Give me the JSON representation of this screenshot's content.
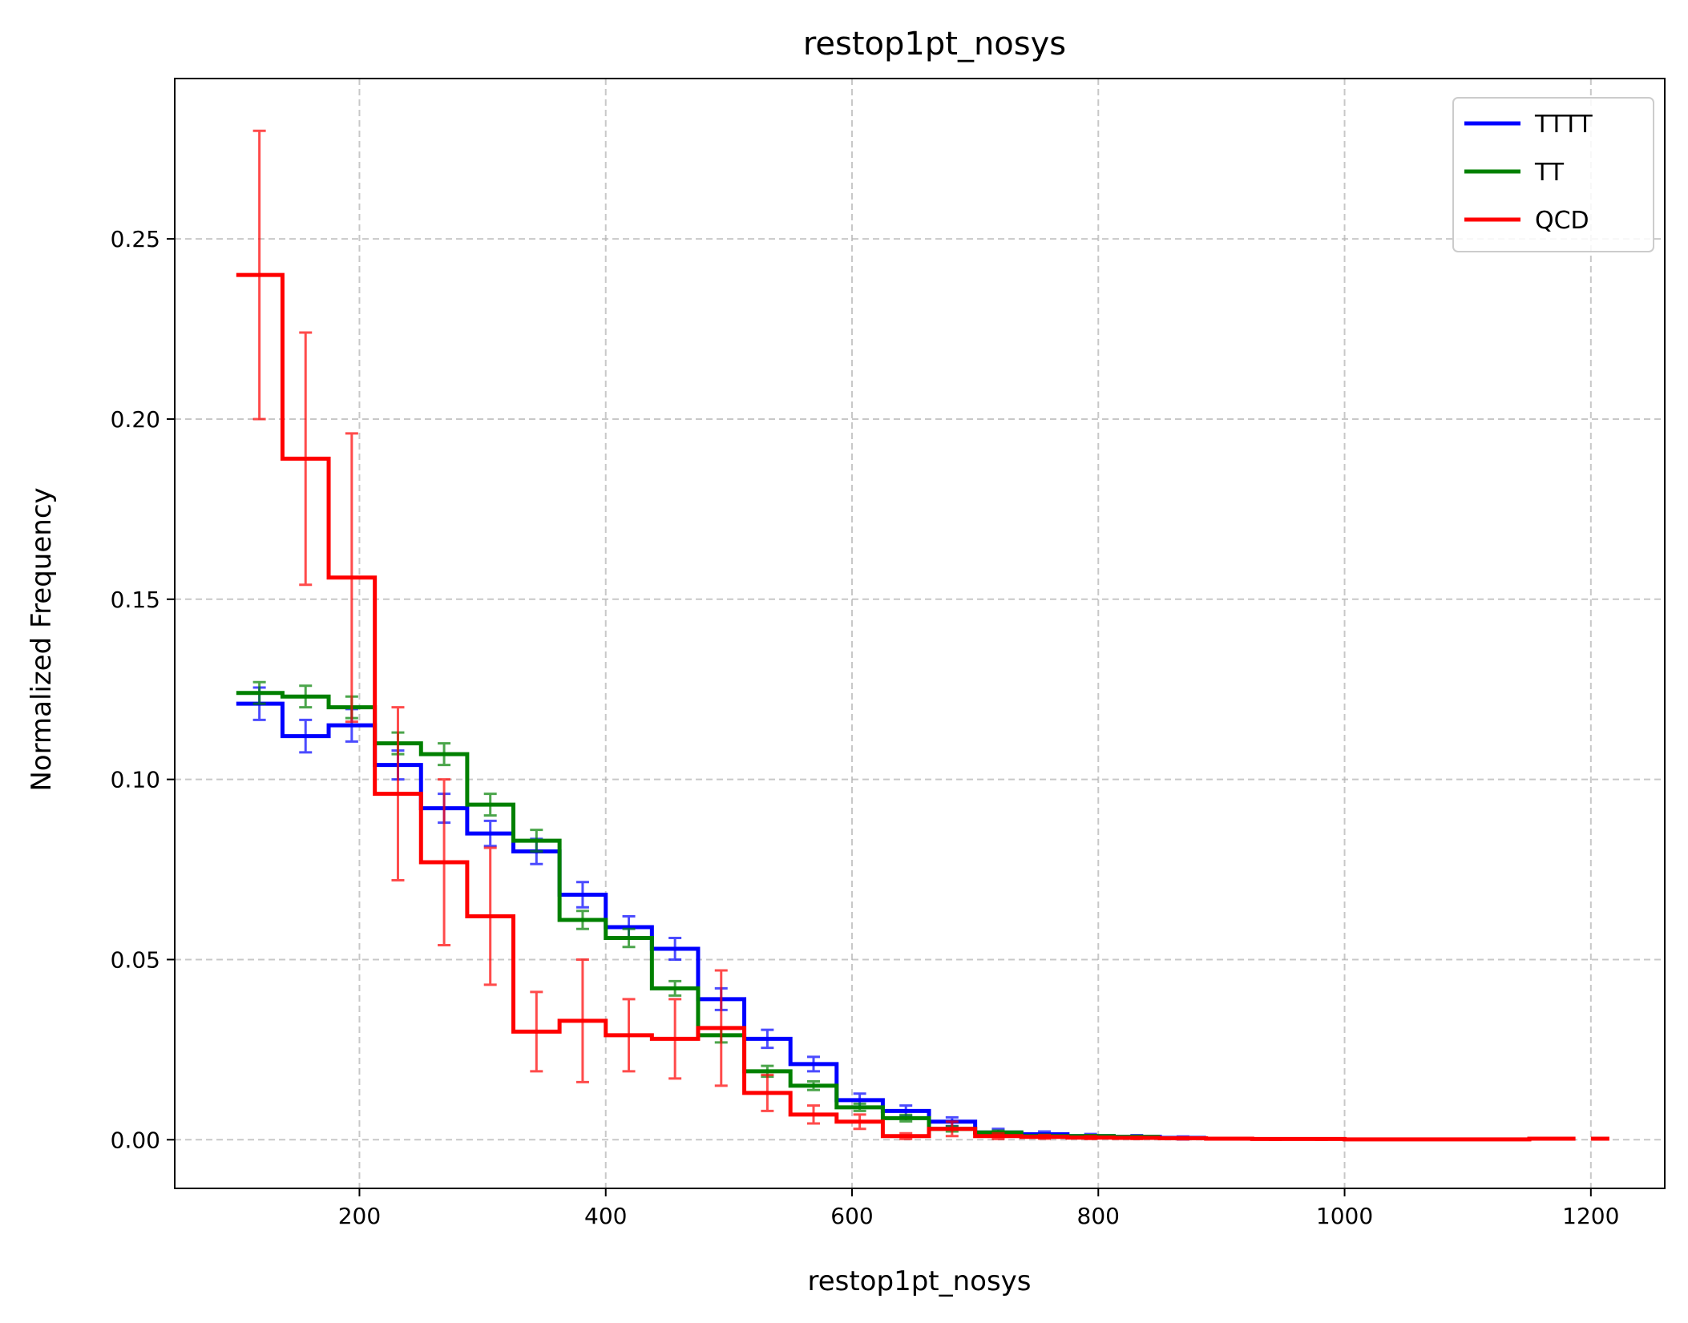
{
  "chart_data": {
    "type": "line",
    "title": "restop1pt_nosys",
    "xlabel": "restop1pt_nosys",
    "ylabel": "Normalized Frequency",
    "xlim": [
      50,
      1260
    ],
    "ylim": [
      -0.0135,
      0.2945
    ],
    "xticks": [
      200,
      400,
      600,
      800,
      1000,
      1200
    ],
    "yticks": [
      0.0,
      0.05,
      0.1,
      0.15,
      0.2,
      0.25
    ],
    "xtick_labels": [
      "200",
      "400",
      "600",
      "800",
      "1000",
      "1200"
    ],
    "ytick_labels": [
      "0.00",
      "0.05",
      "0.10",
      "0.15",
      "0.20",
      "0.25"
    ],
    "grid": true,
    "legend_position": "top-right",
    "series": [
      {
        "name": "TTTT",
        "color": "#0000ff",
        "bin_edges": [
          100,
          137.5,
          175,
          212.5,
          250,
          287.5,
          325,
          362.5,
          400,
          437.5,
          475,
          512.5,
          550,
          587.5,
          625,
          662.5,
          700,
          737.5,
          775,
          812.5,
          850,
          887.5
        ],
        "values": [
          0.121,
          0.112,
          0.115,
          0.104,
          0.092,
          0.085,
          0.08,
          0.068,
          0.059,
          0.053,
          0.039,
          0.028,
          0.021,
          0.011,
          0.008,
          0.005,
          0.002,
          0.0015,
          0.001,
          0.0008,
          0.0005
        ],
        "errors": [
          0.0045,
          0.0045,
          0.0045,
          0.004,
          0.004,
          0.0035,
          0.0035,
          0.0035,
          0.003,
          0.003,
          0.003,
          0.0025,
          0.002,
          0.0018,
          0.0015,
          0.0012,
          0.001,
          0.0008,
          0.0006,
          0.0005,
          0.0004
        ]
      },
      {
        "name": "TT",
        "color": "#008000",
        "bin_edges": [
          100,
          137.5,
          175,
          212.5,
          250,
          287.5,
          325,
          362.5,
          400,
          437.5,
          475,
          512.5,
          550,
          587.5,
          625,
          662.5,
          700,
          737.5,
          775,
          812.5,
          850
        ],
        "values": [
          0.124,
          0.123,
          0.12,
          0.11,
          0.107,
          0.093,
          0.083,
          0.061,
          0.056,
          0.042,
          0.029,
          0.019,
          0.015,
          0.009,
          0.006,
          0.003,
          0.002,
          0.001,
          0.001,
          0.0008
        ],
        "errors": [
          0.003,
          0.003,
          0.003,
          0.003,
          0.003,
          0.003,
          0.003,
          0.0025,
          0.0025,
          0.002,
          0.002,
          0.0015,
          0.0012,
          0.001,
          0.0009,
          0.0007,
          0.0005,
          0.0004,
          0.0003,
          0.0003
        ]
      },
      {
        "name": "QCD",
        "color": "#ff0000",
        "bin_edges": [
          100,
          137.5,
          175,
          212.5,
          250,
          287.5,
          325,
          362.5,
          400,
          437.5,
          475,
          512.5,
          550,
          587.5,
          625,
          662.5,
          700,
          737.5,
          775,
          812.5,
          850,
          887.5,
          925,
          962.5,
          1000,
          1037.5,
          1075,
          1112.5,
          1150,
          1187.5
        ],
        "values": [
          0.24,
          0.189,
          0.156,
          0.096,
          0.077,
          0.062,
          0.03,
          0.033,
          0.029,
          0.028,
          0.031,
          0.013,
          0.007,
          0.005,
          0.001,
          0.003,
          0.001,
          0.0008,
          0.0006,
          0.0005,
          0.0004,
          0.0003,
          0.0002,
          0.0002,
          0.0001,
          0.0001,
          0.0001,
          0.0001,
          0.0003
        ],
        "errors": [
          0.04,
          0.035,
          0.04,
          0.024,
          0.023,
          0.019,
          0.011,
          0.017,
          0.01,
          0.011,
          0.016,
          0.005,
          0.0025,
          0.002,
          0.0008,
          0.002,
          0.0008,
          0.0005,
          0.0004,
          0.0003,
          0.0003,
          0.0002,
          0.0002,
          0.0002,
          0.0001,
          0.0001,
          0.0001,
          0.0001,
          0.0002
        ]
      }
    ],
    "extra_marks": [
      {
        "series": "QCD",
        "x_range": [
          1200,
          1215
        ],
        "value": 0.0003
      }
    ]
  }
}
